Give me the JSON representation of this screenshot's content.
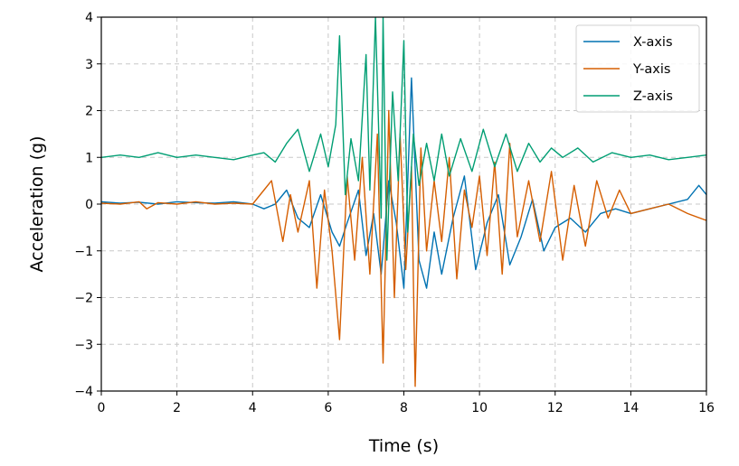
{
  "chart_data": {
    "type": "line",
    "title": "",
    "xlabel": "Time (s)",
    "ylabel": "Acceleration (g)",
    "xlim": [
      0,
      16
    ],
    "ylim": [
      -4,
      4
    ],
    "xticks": [
      "0",
      "2",
      "4",
      "6",
      "8",
      "10",
      "12",
      "14",
      "16"
    ],
    "yticks": [
      "−4",
      "−3",
      "−2",
      "−1",
      "0",
      "1",
      "2",
      "3",
      "4"
    ],
    "grid": true,
    "legend_position": "top-right",
    "colors": {
      "X-axis": "#0072b2",
      "Y-axis": "#d55e00",
      "Z-axis": "#009e73"
    },
    "series": [
      {
        "name": "X-axis",
        "x": [
          0,
          0.5,
          1,
          1.5,
          2,
          2.5,
          3,
          3.5,
          4,
          4.3,
          4.6,
          4.9,
          5.2,
          5.5,
          5.8,
          6.1,
          6.3,
          6.5,
          6.8,
          7.0,
          7.2,
          7.4,
          7.6,
          7.8,
          8.0,
          8.2,
          8.4,
          8.6,
          8.8,
          9.0,
          9.3,
          9.6,
          9.9,
          10.2,
          10.5,
          10.8,
          11.1,
          11.4,
          11.7,
          12.0,
          12.4,
          12.8,
          13.2,
          13.6,
          14.0,
          14.5,
          15.0,
          15.5,
          15.8,
          16.0
        ],
        "values": [
          0.05,
          0.02,
          0.04,
          0.0,
          0.05,
          0.03,
          0.02,
          0.05,
          0.0,
          -0.1,
          0.0,
          0.3,
          -0.3,
          -0.5,
          0.2,
          -0.6,
          -0.9,
          -0.4,
          0.3,
          -1.1,
          -0.2,
          -1.5,
          0.5,
          -0.4,
          -1.8,
          2.7,
          -1.2,
          -1.8,
          -0.6,
          -1.5,
          -0.3,
          0.6,
          -1.4,
          -0.4,
          0.2,
          -1.3,
          -0.7,
          0.1,
          -1.0,
          -0.5,
          -0.3,
          -0.6,
          -0.2,
          -0.1,
          -0.2,
          -0.1,
          0.0,
          0.1,
          0.4,
          0.2
        ]
      },
      {
        "name": "Y-axis",
        "x": [
          0,
          0.5,
          1,
          1.2,
          1.5,
          2,
          2.5,
          3,
          3.5,
          4,
          4.3,
          4.5,
          4.8,
          5.0,
          5.2,
          5.5,
          5.7,
          5.9,
          6.1,
          6.3,
          6.5,
          6.7,
          6.9,
          7.1,
          7.3,
          7.45,
          7.6,
          7.75,
          7.9,
          8.05,
          8.2,
          8.3,
          8.45,
          8.6,
          8.8,
          9.0,
          9.2,
          9.4,
          9.6,
          9.8,
          10.0,
          10.2,
          10.4,
          10.6,
          10.8,
          11.0,
          11.3,
          11.6,
          11.9,
          12.2,
          12.5,
          12.8,
          13.1,
          13.4,
          13.7,
          14.0,
          14.5,
          15.0,
          15.5,
          16.0
        ],
        "values": [
          0.02,
          0.0,
          0.05,
          -0.1,
          0.03,
          0.0,
          0.05,
          0.0,
          0.02,
          0.0,
          0.3,
          0.5,
          -0.8,
          0.2,
          -0.6,
          0.5,
          -1.8,
          0.3,
          -1.0,
          -2.9,
          0.6,
          -1.2,
          1.0,
          -1.5,
          1.5,
          -3.4,
          2.0,
          -2.0,
          1.5,
          -1.4,
          0.8,
          -3.9,
          1.2,
          -1.0,
          0.5,
          -0.8,
          1.0,
          -1.6,
          0.3,
          -0.5,
          0.6,
          -1.1,
          0.9,
          -1.5,
          1.3,
          -0.7,
          0.5,
          -0.8,
          0.7,
          -1.2,
          0.4,
          -0.9,
          0.5,
          -0.3,
          0.3,
          -0.2,
          -0.1,
          0.0,
          -0.2,
          -0.35
        ]
      },
      {
        "name": "Z-axis",
        "x": [
          0,
          0.5,
          1,
          1.5,
          2,
          2.5,
          3,
          3.5,
          4,
          4.3,
          4.6,
          4.9,
          5.2,
          5.5,
          5.8,
          6.0,
          6.2,
          6.3,
          6.45,
          6.6,
          6.8,
          7.0,
          7.1,
          7.25,
          7.4,
          7.45,
          7.55,
          7.7,
          7.85,
          8.0,
          8.1,
          8.25,
          8.4,
          8.6,
          8.8,
          9.0,
          9.2,
          9.5,
          9.8,
          10.1,
          10.4,
          10.7,
          11.0,
          11.3,
          11.6,
          11.9,
          12.2,
          12.6,
          13.0,
          13.5,
          14.0,
          14.5,
          15.0,
          15.5,
          16.0
        ],
        "values": [
          1.0,
          1.05,
          1.0,
          1.1,
          1.0,
          1.05,
          1.0,
          0.95,
          1.05,
          1.1,
          0.9,
          1.3,
          1.6,
          0.7,
          1.5,
          0.8,
          1.7,
          3.6,
          0.2,
          1.4,
          0.5,
          3.2,
          0.3,
          4.0,
          -0.3,
          4.0,
          -1.2,
          2.4,
          0.5,
          3.5,
          -0.6,
          1.5,
          0.4,
          1.3,
          0.5,
          1.5,
          0.6,
          1.4,
          0.7,
          1.6,
          0.8,
          1.5,
          0.7,
          1.3,
          0.9,
          1.2,
          1.0,
          1.2,
          0.9,
          1.1,
          1.0,
          1.05,
          0.95,
          1.0,
          1.05
        ]
      }
    ]
  }
}
